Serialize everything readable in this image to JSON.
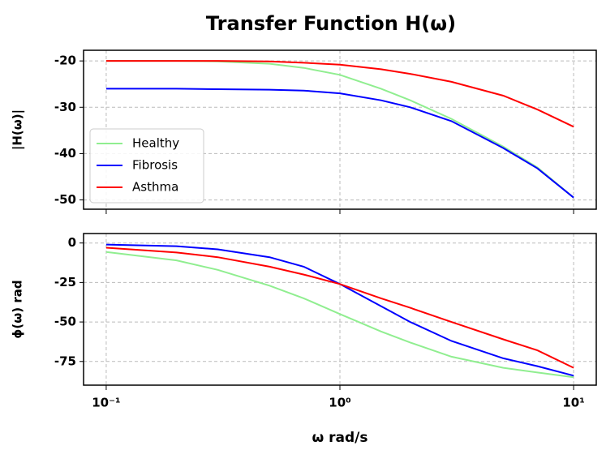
{
  "title": "Transfer Function H(ω)",
  "chart_data": [
    {
      "type": "line",
      "ylabel": "|H(ω)|",
      "xscale": "log",
      "grid": true,
      "legend": "lower left",
      "show_xtick_labels": false,
      "x": [
        0.1,
        0.2,
        0.3,
        0.5,
        0.7,
        1,
        1.5,
        2,
        3,
        5,
        7,
        10
      ],
      "series": [
        {
          "name": "Healthy",
          "color": "#90ee90",
          "values": [
            -20,
            -20,
            -20.1,
            -20.6,
            -21.5,
            -23,
            -26,
            -28.5,
            -32.5,
            -38.5,
            -43,
            -49.5
          ]
        },
        {
          "name": "Fibrosis",
          "color": "#0000ff",
          "values": [
            -26,
            -26,
            -26.1,
            -26.2,
            -26.4,
            -27,
            -28.5,
            -30,
            -33,
            -38.8,
            -43.2,
            -49.5
          ]
        },
        {
          "name": "Asthma",
          "color": "#ff0000",
          "values": [
            -20,
            -20,
            -20,
            -20.1,
            -20.4,
            -20.8,
            -21.8,
            -22.8,
            -24.5,
            -27.5,
            -30.5,
            -34.2
          ]
        }
      ],
      "xlim": [
        0.08,
        12.5
      ],
      "xticks": [
        0.1,
        1,
        10
      ],
      "ylim": [
        -52,
        -17.7
      ],
      "yticks": [
        -20,
        -30,
        -40,
        -50
      ]
    },
    {
      "type": "line",
      "ylabel": "ϕ(ω) rad",
      "xlabel": "ω rad/s",
      "xscale": "log",
      "grid": true,
      "show_xtick_labels": true,
      "x": [
        0.1,
        0.2,
        0.3,
        0.5,
        0.7,
        1,
        1.5,
        2,
        3,
        5,
        7,
        10
      ],
      "series": [
        {
          "color": "#90ee90",
          "values": [
            -5.7,
            -11,
            -17,
            -27,
            -35,
            -45,
            -56,
            -63,
            -72,
            -79,
            -82,
            -85
          ]
        },
        {
          "color": "#0000ff",
          "values": [
            -1,
            -2,
            -4,
            -9,
            -15,
            -26,
            -40,
            -50,
            -62,
            -73,
            -78,
            -84
          ]
        },
        {
          "color": "#ff0000",
          "values": [
            -3,
            -6,
            -9,
            -15,
            -20,
            -26,
            -35,
            -41,
            -50,
            -61,
            -68,
            -79
          ]
        }
      ],
      "xlim": [
        0.08,
        12.5
      ],
      "xticks": [
        {
          "value": 0.1,
          "label": "10⁻¹"
        },
        {
          "value": 1,
          "label": "10⁰"
        },
        {
          "value": 10,
          "label": "10¹"
        }
      ],
      "ylim": [
        -90,
        6
      ],
      "yticks": [
        0,
        -25,
        -50,
        -75
      ]
    }
  ]
}
